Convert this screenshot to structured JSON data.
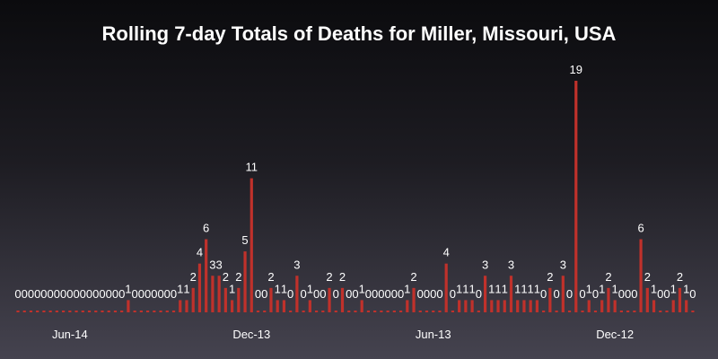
{
  "chart_data": {
    "type": "bar",
    "title": "Rolling 7-day Totals of Deaths for Miller, Missouri, USA",
    "xlabel": "",
    "ylabel": "",
    "ylim": [
      0,
      19
    ],
    "grid": false,
    "bar_color": "#c0312b",
    "x_tick_labels": [
      "Jun-14",
      "Dec-13",
      "Jun-13",
      "Dec-12"
    ],
    "x_tick_bar_index": [
      8,
      36,
      64,
      92
    ],
    "values": [
      0,
      0,
      0,
      0,
      0,
      0,
      0,
      0,
      0,
      0,
      0,
      0,
      0,
      0,
      0,
      0,
      0,
      1,
      0,
      0,
      0,
      0,
      0,
      0,
      0,
      1,
      1,
      2,
      4,
      6,
      3,
      3,
      2,
      1,
      2,
      5,
      11,
      0,
      0,
      2,
      1,
      1,
      0,
      3,
      0,
      1,
      0,
      0,
      2,
      0,
      2,
      0,
      0,
      1,
      0,
      0,
      0,
      0,
      0,
      0,
      1,
      2,
      0,
      0,
      0,
      0,
      4,
      0,
      1,
      1,
      1,
      0,
      3,
      1,
      1,
      1,
      3,
      1,
      1,
      1,
      1,
      0,
      2,
      0,
      3,
      0,
      19,
      0,
      1,
      0,
      1,
      2,
      1,
      0,
      0,
      0,
      6,
      2,
      1,
      0,
      0,
      1,
      2,
      1,
      0
    ],
    "value_labels": [
      "0",
      "0",
      "0",
      "0",
      "0",
      "0",
      "0",
      "0",
      "0",
      "0",
      "0",
      "0",
      "0",
      "0",
      "0",
      "0",
      "0",
      "1",
      "0",
      "0",
      "0",
      "0",
      "0",
      "0",
      "0",
      "1",
      "1",
      "2",
      "4",
      "6",
      "3",
      "3",
      "2",
      "1",
      "2",
      "5",
      "11",
      "0",
      "0",
      "2",
      "1",
      "1",
      "0",
      "3",
      "0",
      "1",
      "0",
      "0",
      "2",
      "0",
      "2",
      "0",
      "0",
      "1",
      "0",
      "0",
      "0",
      "0",
      "0",
      "0",
      "1",
      "2",
      "0",
      "0",
      "0",
      "0",
      "4",
      "0",
      "1",
      "1",
      "1",
      "0",
      "3",
      "1",
      "1",
      "1",
      "3",
      "1",
      "1",
      "1",
      "1",
      "0",
      "2",
      "0",
      "3",
      "0",
      "19",
      "0",
      "1",
      "0",
      "1",
      "2",
      "1",
      "0",
      "0",
      "0",
      "6",
      "2",
      "1",
      "0",
      "0",
      "1",
      "2",
      "1",
      "0"
    ]
  }
}
